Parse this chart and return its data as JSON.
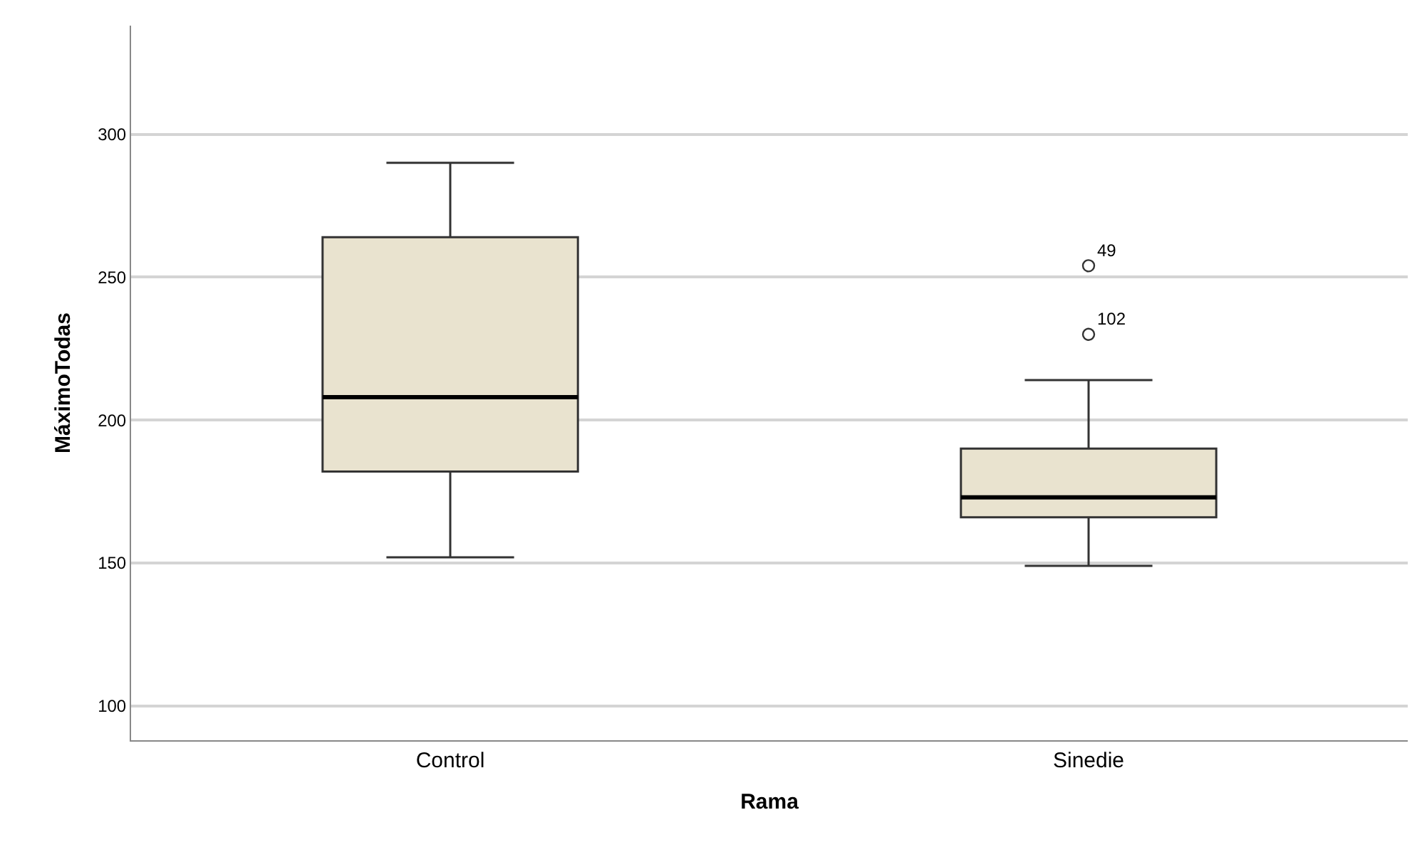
{
  "chart_data": {
    "type": "box",
    "xlabel": "Rama",
    "ylabel": "MáximoTodas",
    "categories": [
      "Control",
      "Sinedie"
    ],
    "boxes": [
      {
        "low": 152,
        "q1": 182,
        "median": 208,
        "q3": 264,
        "high": 290
      },
      {
        "low": 149,
        "q1": 166,
        "median": 173,
        "q3": 190,
        "high": 214,
        "outliers": [
          254,
          230
        ]
      }
    ],
    "color": "#e9e3cf",
    "ylim": [
      88,
      338
    ],
    "yticks": [
      100,
      150,
      200,
      250,
      300
    ],
    "grid": "y",
    "annotations": [
      "49",
      "102"
    ]
  }
}
